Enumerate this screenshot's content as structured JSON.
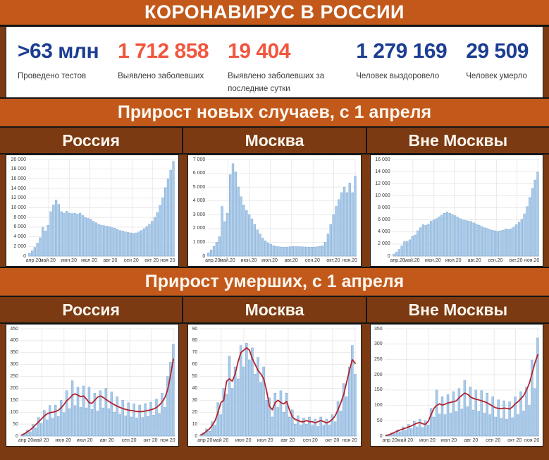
{
  "header": {
    "title": "КОРОНАВИРУС В РОССИИ"
  },
  "colors": {
    "band_orange": "#c2591b",
    "background_brown": "#7b3a12",
    "stat_blue": "#1c3e92",
    "stat_red": "#f0573e",
    "bar_fill": "#a9cae9",
    "bar_edge": "#7fa9d4",
    "trend_red": "#b3232e",
    "grid": "#e2e2e2"
  },
  "stats": {
    "value_colors": {
      "blue": "#1c3e92",
      "red": "#f0573e"
    },
    "items": [
      {
        "value": ">63 млн",
        "color": "blue",
        "label": "Проведено тестов"
      },
      {
        "value": "1 712 858",
        "color": "red",
        "label": "Выявлено заболевших"
      },
      {
        "value": "19 404",
        "color": "red",
        "label": "Выявлено заболевших за последние сутки"
      },
      {
        "value": "1 279 169",
        "color": "blue",
        "label": "Человек выздоровело"
      },
      {
        "value": "29 509",
        "color": "blue",
        "label": "Человек умерло"
      }
    ]
  },
  "sections": [
    {
      "title": "Прирост новых случаев, с 1 апреля",
      "panels": [
        "Россия",
        "Москва",
        "Вне Москвы"
      ]
    },
    {
      "title": "Прирост умерших, с 1 апреля",
      "panels": [
        "Россия",
        "Москва",
        "Вне Москвы"
      ]
    }
  ],
  "chart_data": [
    {
      "id": "new-cases-russia",
      "title": "Россия",
      "section": "Прирост новых случаев, с 1 апреля",
      "type": "bar",
      "ylim": [
        0,
        20000
      ],
      "ytick_step": 2000,
      "ytick_labels": [
        "0",
        "2 000",
        "4 000",
        "6 000",
        "8 000",
        "10 000",
        "12 000",
        "14 000",
        "16 000",
        "18 000",
        "20 000"
      ],
      "x_labels": [
        "апр 20",
        "май 20",
        "июн 20",
        "июл 20",
        "авг 20",
        "сен 20",
        "окт 20",
        "ноя 20"
      ],
      "x_tick_days": [
        0,
        30,
        61,
        91,
        122,
        153,
        183,
        214
      ],
      "days_total": 216,
      "sample_step_days": 4,
      "pad_left": 31,
      "values": [
        600,
        1100,
        1800,
        2700,
        3800,
        6000,
        5200,
        6400,
        9200,
        10600,
        11600,
        10700,
        9200,
        8900,
        9300,
        8900,
        8800,
        8900,
        8700,
        8900,
        8400,
        8000,
        7800,
        7600,
        7200,
        6900,
        6600,
        6400,
        6300,
        6200,
        6100,
        5900,
        5800,
        5500,
        5300,
        5200,
        5000,
        4900,
        4800,
        4700,
        4800,
        5000,
        5300,
        5700,
        6100,
        6600,
        7200,
        8000,
        9000,
        10500,
        12100,
        14200,
        16000,
        17800,
        19600
      ]
    },
    {
      "id": "new-cases-moscow",
      "title": "Москва",
      "section": "Прирост новых случаев, с 1 апреля",
      "type": "bar",
      "ylim": [
        0,
        7000
      ],
      "ytick_step": 1000,
      "ytick_labels": [
        "0",
        "1 000",
        "2 000",
        "3 000",
        "4 000",
        "5 000",
        "6 000",
        "7 000"
      ],
      "x_labels": [
        "апр.20",
        "май.20",
        "июн.20",
        "июл.20",
        "авг.20",
        "сен.20",
        "окт.20",
        "ноя.20"
      ],
      "x_tick_days": [
        0,
        30,
        61,
        91,
        122,
        153,
        183,
        214
      ],
      "days_total": 216,
      "sample_step_days": 4,
      "pad_left": 27,
      "values": [
        250,
        450,
        700,
        1000,
        1400,
        3600,
        2500,
        3100,
        5900,
        6700,
        6100,
        5000,
        4300,
        3700,
        3300,
        3000,
        2700,
        2300,
        1900,
        1600,
        1300,
        1100,
        950,
        850,
        750,
        700,
        680,
        660,
        650,
        660,
        680,
        700,
        690,
        690,
        680,
        670,
        660,
        650,
        650,
        660,
        680,
        700,
        750,
        1000,
        1600,
        2300,
        3000,
        3600,
        4100,
        4600,
        5000,
        4600,
        5300,
        4600,
        5800
      ]
    },
    {
      "id": "new-cases-outside-moscow",
      "title": "Вне Москвы",
      "section": "Прирост новых случаев, с 1 апреля",
      "type": "bar",
      "ylim": [
        0,
        16000
      ],
      "ytick_step": 2000,
      "ytick_labels": [
        "0",
        "2 000",
        "4 000",
        "6 000",
        "8 000",
        "10 000",
        "12 000",
        "14 000",
        "16 000"
      ],
      "x_labels": [
        "апр.20",
        "май.20",
        "июн.20",
        "июл.20",
        "авг.20",
        "сен.20",
        "окт.20",
        "ноя.20"
      ],
      "x_tick_days": [
        0,
        30,
        61,
        91,
        122,
        153,
        183,
        214
      ],
      "days_total": 216,
      "sample_step_days": 4,
      "pad_left": 31,
      "values": [
        350,
        650,
        1100,
        1700,
        2400,
        2400,
        2700,
        3300,
        3500,
        4200,
        4700,
        5200,
        5100,
        5300,
        5800,
        6000,
        6200,
        6500,
        6800,
        7100,
        7300,
        7100,
        6900,
        6700,
        6400,
        6200,
        6000,
        5900,
        5800,
        5700,
        5500,
        5300,
        5100,
        4900,
        4700,
        4600,
        4400,
        4300,
        4200,
        4100,
        4200,
        4300,
        4500,
        4400,
        4500,
        4800,
        5200,
        5600,
        6100,
        7000,
        8200,
        9700,
        11200,
        12600,
        13900
      ]
    },
    {
      "id": "deaths-russia",
      "title": "Россия",
      "section": "Прирост умерших, с 1 апреля",
      "type": "bar",
      "ylim": [
        0,
        450
      ],
      "ytick_step": 50,
      "ytick_labels": [
        "0",
        "50",
        "100",
        "150",
        "200",
        "250",
        "300",
        "350",
        "400",
        "450"
      ],
      "x_labels": [
        "апр 20",
        "май 20",
        "июн 20",
        "июл 20",
        "авг 20",
        "сен 20",
        "окт 20",
        "ноя 20"
      ],
      "x_tick_days": [
        0,
        30,
        61,
        91,
        122,
        153,
        183,
        214
      ],
      "days_total": 216,
      "sample_step_days": 4,
      "pad_left": 20,
      "values": [
        5,
        8,
        25,
        18,
        48,
        35,
        78,
        52,
        108,
        68,
        128,
        75,
        130,
        82,
        150,
        98,
        190,
        115,
        232,
        128,
        205,
        120,
        210,
        118,
        205,
        112,
        180,
        105,
        190,
        118,
        200,
        115,
        185,
        100,
        165,
        92,
        150,
        85,
        140,
        80,
        135,
        76,
        130,
        78,
        136,
        82,
        142,
        88,
        155,
        95,
        180,
        120,
        250,
        310,
        385
      ],
      "trend": [
        4,
        10,
        18,
        26,
        36,
        48,
        60,
        72,
        84,
        93,
        98,
        100,
        103,
        108,
        118,
        132,
        148,
        158,
        172,
        177,
        171,
        165,
        168,
        155,
        140,
        137,
        150,
        163,
        168,
        162,
        153,
        145,
        138,
        131,
        125,
        120,
        115,
        112,
        109,
        107,
        105,
        103,
        102,
        103,
        105,
        107,
        110,
        114,
        120,
        130,
        143,
        162,
        195,
        255,
        322
      ]
    },
    {
      "id": "deaths-moscow",
      "title": "Москва",
      "section": "Прирост умерших, с 1 апреля",
      "type": "bar",
      "ylim": [
        0,
        90
      ],
      "ytick_step": 10,
      "ytick_labels": [
        "0",
        "10",
        "20",
        "30",
        "40",
        "50",
        "60",
        "70",
        "80",
        "90"
      ],
      "x_labels": [
        "апр 20",
        "май 20",
        "июн 20",
        "июл 20",
        "авг 20",
        "сен 20",
        "окт 20",
        "ноя 20"
      ],
      "x_tick_days": [
        0,
        30,
        61,
        91,
        122,
        153,
        183,
        214
      ],
      "days_total": 216,
      "sample_step_days": 4,
      "pad_left": 16,
      "values": [
        1,
        3,
        6,
        4,
        12,
        9,
        28,
        18,
        40,
        35,
        67,
        40,
        58,
        48,
        76,
        58,
        78,
        64,
        74,
        52,
        66,
        45,
        58,
        30,
        32,
        16,
        36,
        24,
        38,
        20,
        36,
        16,
        22,
        10,
        17,
        9,
        15,
        10,
        16,
        9,
        14,
        8,
        16,
        9,
        14,
        9,
        18,
        12,
        29,
        21,
        44,
        33,
        58,
        76,
        52
      ],
      "trend": [
        1,
        2,
        4,
        6,
        9,
        13,
        20,
        28,
        30,
        46,
        48,
        46,
        52,
        62,
        70,
        72,
        74,
        72,
        65,
        60,
        55,
        52,
        48,
        38,
        25,
        22,
        28,
        30,
        28,
        27,
        29,
        22,
        16,
        14,
        13,
        12,
        12,
        13,
        12,
        12,
        11,
        12,
        13,
        12,
        11,
        12,
        14,
        17,
        22,
        28,
        35,
        45,
        55,
        64,
        61
      ]
    },
    {
      "id": "deaths-outside-moscow",
      "title": "Вне Москвы",
      "section": "Прирост умерших, с 1 апреля",
      "type": "bar",
      "ylim": [
        0,
        350
      ],
      "ytick_step": 50,
      "ytick_labels": [
        "0",
        "50",
        "100",
        "150",
        "200",
        "250",
        "300",
        "350"
      ],
      "x_labels": [
        "апр 20",
        "май 20",
        "июн 20",
        "июл 20",
        "авг 20",
        "сен 20",
        "окт 20",
        "ноя 20"
      ],
      "x_tick_days": [
        0,
        30,
        61,
        91,
        122,
        153,
        183,
        214
      ],
      "days_total": 216,
      "sample_step_days": 4,
      "pad_left": 20,
      "values": [
        2,
        5,
        10,
        8,
        20,
        14,
        30,
        18,
        38,
        24,
        48,
        30,
        55,
        28,
        50,
        36,
        90,
        62,
        150,
        72,
        128,
        70,
        135,
        75,
        145,
        80,
        155,
        88,
        182,
        95,
        160,
        85,
        150,
        80,
        148,
        75,
        140,
        70,
        128,
        62,
        118,
        58,
        115,
        55,
        112,
        60,
        128,
        70,
        145,
        82,
        160,
        100,
        248,
        155,
        320
      ],
      "trend": [
        2,
        4,
        8,
        12,
        16,
        20,
        23,
        26,
        30,
        33,
        38,
        42,
        44,
        40,
        38,
        48,
        70,
        90,
        100,
        105,
        101,
        104,
        108,
        110,
        112,
        115,
        125,
        133,
        140,
        136,
        128,
        123,
        120,
        118,
        115,
        112,
        108,
        103,
        97,
        92,
        90,
        89,
        91,
        90,
        88,
        95,
        105,
        112,
        122,
        132,
        150,
        172,
        205,
        238,
        265
      ]
    }
  ]
}
